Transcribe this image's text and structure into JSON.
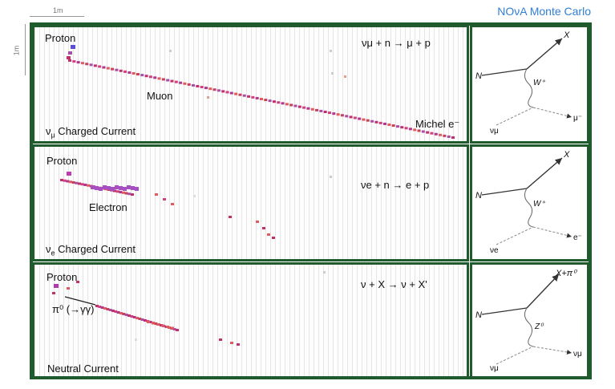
{
  "scale": {
    "horizontal": "1m",
    "vertical": "1m"
  },
  "credit": "NOνA Monte Carlo",
  "panels": [
    {
      "title_main": "ν",
      "title_sub": "μ",
      "title_rest": " Charged Current",
      "equation": "νμ + n → μ + p",
      "labels": {
        "proton": "Proton",
        "track": "Muon",
        "extra": "Michel e⁻"
      },
      "diagram": {
        "in": "N",
        "out": "X",
        "boson": "W⁺",
        "nu": "νμ",
        "lepton": "μ⁻"
      }
    },
    {
      "title_main": "ν",
      "title_sub": "e",
      "title_rest": " Charged Current",
      "equation": "νe + n → e + p",
      "labels": {
        "proton": "Proton",
        "track": "Electron"
      },
      "diagram": {
        "in": "N",
        "out": "X",
        "boson": "W⁺",
        "nu": "νe",
        "lepton": "e⁻"
      }
    },
    {
      "title_main": "Neutral Current",
      "title_sub": "",
      "title_rest": "",
      "equation": "ν + X → ν + X'",
      "labels": {
        "proton": "Proton",
        "track": "π⁰ (→γγ)"
      },
      "diagram": {
        "in": "N",
        "out": "X+π⁰",
        "boson": "Z⁰",
        "nu": "νμ",
        "lepton": "νμ"
      }
    }
  ],
  "colors": {
    "frame": "#1f5b2c",
    "credit": "#2f7fd6"
  }
}
